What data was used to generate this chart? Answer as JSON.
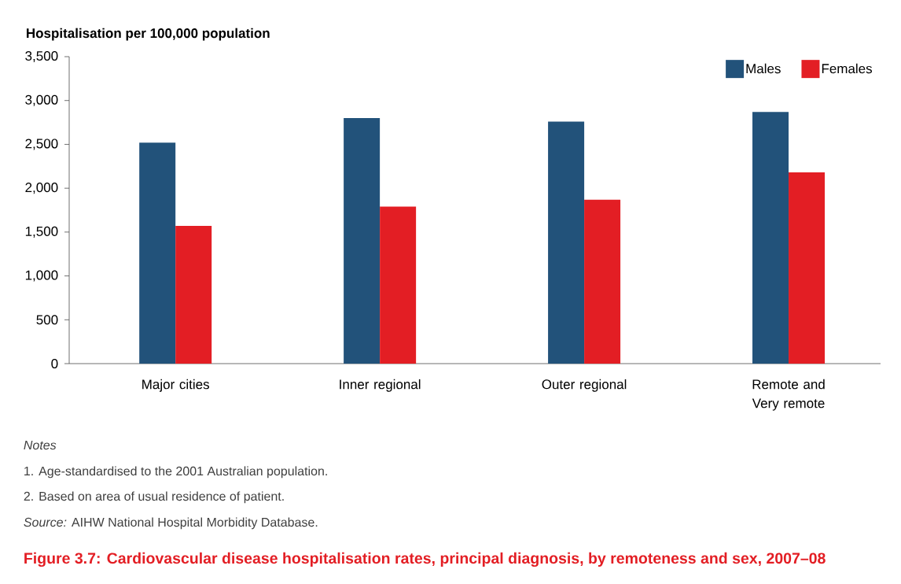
{
  "chart_data": {
    "type": "bar",
    "title": "Figure 3.7: Cardiovascular disease hospitalisation rates, principal diagnosis, by remoteness and sex, 2007–08",
    "ylabel": "Hospitalisation per 100,000 population",
    "categories": [
      "Major cities",
      "Inner regional",
      "Outer regional",
      "Remote and Very remote"
    ],
    "series": [
      {
        "name": "Males",
        "color": "#22527a",
        "values": [
          2520,
          2800,
          2760,
          2870
        ]
      },
      {
        "name": "Females",
        "color": "#e31e24",
        "values": [
          1570,
          1790,
          1870,
          2180
        ]
      }
    ],
    "ylim": [
      0,
      3500
    ],
    "yticks": [
      0,
      500,
      {
        "value": 1000,
        "label": "1,000"
      },
      {
        "value": 1500,
        "label": "1,500"
      },
      {
        "value": 2000,
        "label": "2,000"
      },
      {
        "value": 2500,
        "label": "2,500"
      },
      {
        "value": 3000,
        "label": "3,000"
      },
      {
        "value": 3500,
        "label": "3,500"
      }
    ],
    "legend": "top right",
    "grid": false,
    "annotations": [
      "Notes",
      "1.  Age-standardised to the 2001 Australian population.",
      "2.  Based on area of usual residence of patient.",
      "*Source:* AIHW National Hospital Morbidity Database."
    ]
  }
}
